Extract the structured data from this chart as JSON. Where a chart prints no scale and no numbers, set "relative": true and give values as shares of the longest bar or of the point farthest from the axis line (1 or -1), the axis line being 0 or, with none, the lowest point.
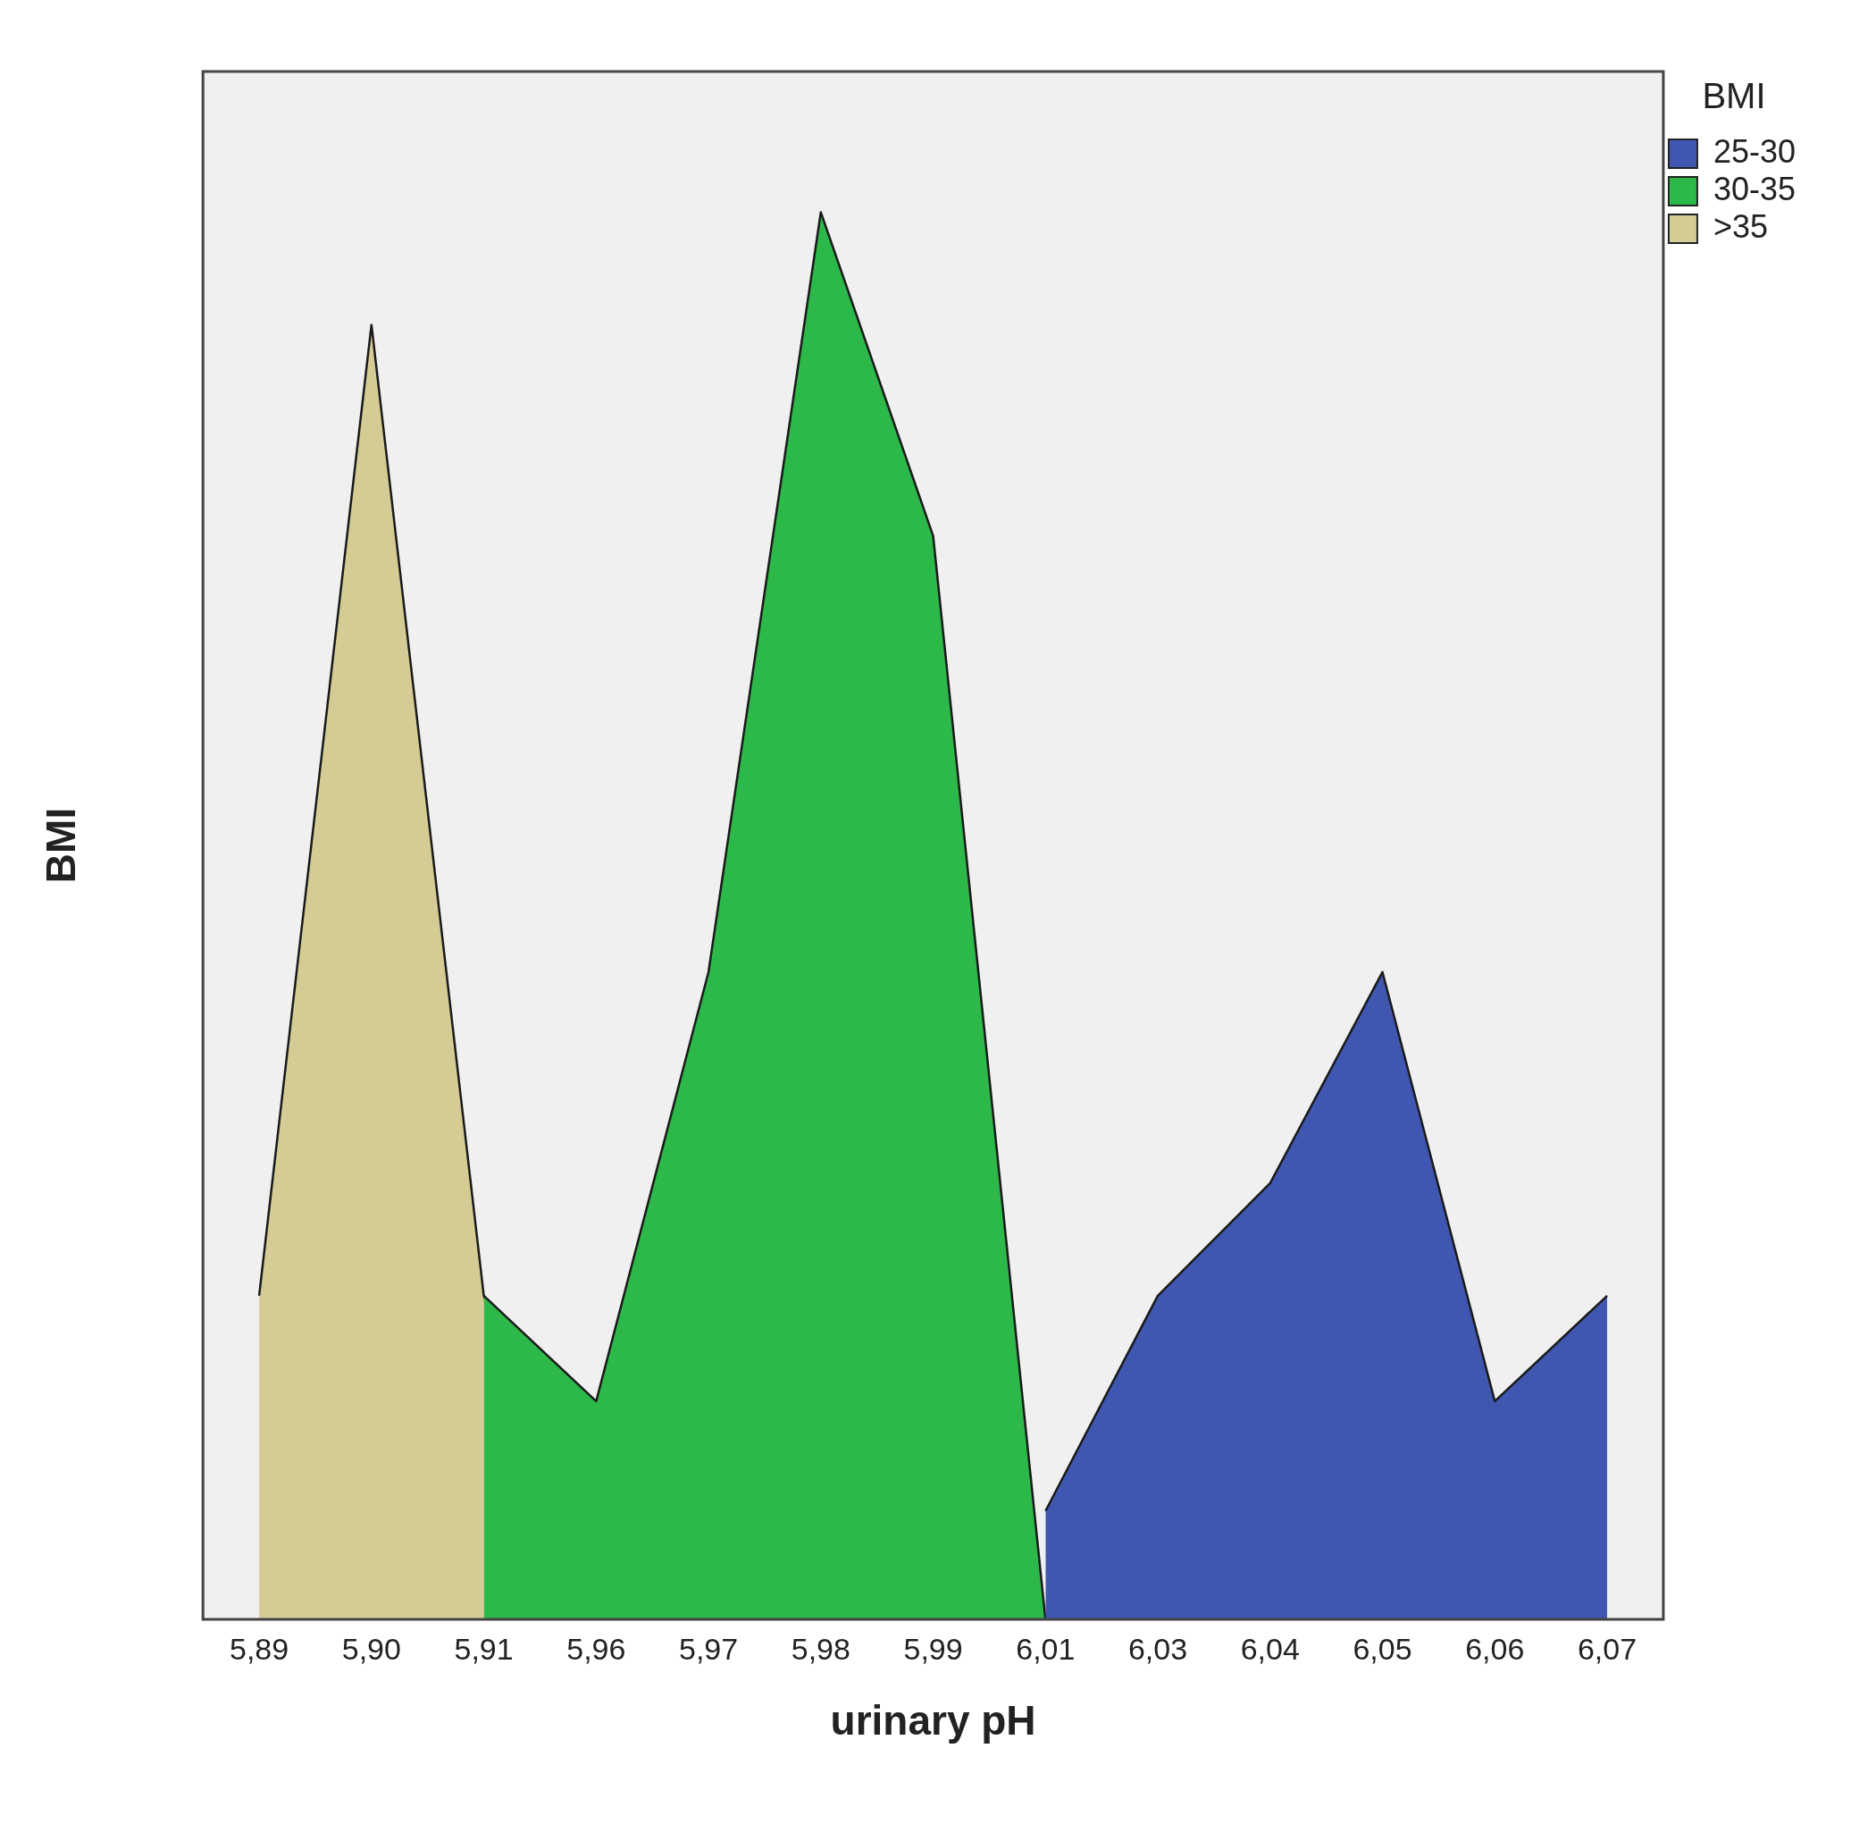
{
  "chart_data": {
    "type": "area",
    "xlabel": "urinary pH",
    "ylabel": "BMI",
    "legend_title": "BMI",
    "legend": "top right",
    "relative": true,
    "grid": false,
    "marker": "none",
    "categories": [
      "5,89",
      "5,90",
      "5,91",
      "5,96",
      "5,97",
      "5,98",
      "5,99",
      "6,01",
      "6,03",
      "6,04",
      "6,05",
      "6,06",
      "6,07"
    ],
    "series": [
      {
        "name": "25-30",
        "color": "#3f57b0",
        "values": [
          null,
          null,
          null,
          null,
          null,
          null,
          null,
          0.077,
          0.23,
          0.31,
          0.46,
          0.155,
          0.23
        ]
      },
      {
        "name": "30-35",
        "color": "#2db84a",
        "values": [
          null,
          null,
          0.23,
          0.155,
          0.46,
          1,
          0.77,
          0,
          null,
          null,
          null,
          null,
          null
        ]
      },
      {
        "name": ">35",
        "color": "#d4cc94",
        "values": [
          0.23,
          0.92,
          0.23,
          0,
          null,
          null,
          null,
          null,
          null,
          null,
          null,
          null,
          null
        ]
      }
    ]
  }
}
